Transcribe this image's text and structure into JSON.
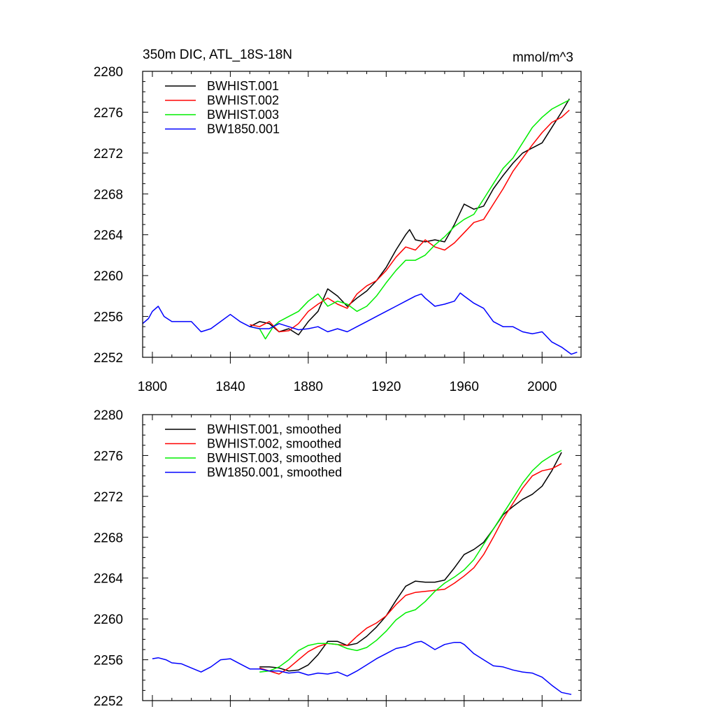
{
  "chart_data": [
    {
      "type": "line",
      "title": "350m DIC, ATL_18S-18N",
      "units": "mmol/m^3",
      "xlim": [
        1795,
        2020
      ],
      "ylim": [
        2252,
        2280
      ],
      "x_ticks": [
        "1800",
        "1840",
        "1880",
        "1920",
        "1960",
        "2000"
      ],
      "y_ticks": [
        "2252",
        "2256",
        "2260",
        "2264",
        "2268",
        "2272",
        "2276",
        "2280"
      ],
      "grid": false,
      "legend_position": "top-left",
      "series": [
        {
          "name": "BWHIST.001",
          "color": "#000000",
          "x": [
            1850,
            1855,
            1860,
            1865,
            1870,
            1875,
            1880,
            1885,
            1890,
            1895,
            1900,
            1905,
            1910,
            1915,
            1920,
            1925,
            1930,
            1932,
            1935,
            1940,
            1945,
            1950,
            1955,
            1960,
            1965,
            1970,
            1975,
            1980,
            1985,
            1990,
            1995,
            2000,
            2005,
            2010,
            2014
          ],
          "y": [
            2255.0,
            2255.5,
            2255.3,
            2254.5,
            2254.8,
            2254.2,
            2255.5,
            2256.5,
            2258.7,
            2258.0,
            2257.0,
            2257.8,
            2258.5,
            2259.5,
            2260.8,
            2262.5,
            2264.0,
            2264.5,
            2263.5,
            2263.3,
            2263.5,
            2263.3,
            2265.0,
            2267.0,
            2266.5,
            2266.8,
            2268.5,
            2269.8,
            2271.0,
            2272.0,
            2272.5,
            2273.0,
            2274.5,
            2276.0,
            2277.3
          ]
        },
        {
          "name": "BWHIST.002",
          "color": "#ff0000",
          "x": [
            1850,
            1855,
            1860,
            1865,
            1870,
            1875,
            1880,
            1885,
            1890,
            1895,
            1900,
            1905,
            1910,
            1915,
            1920,
            1925,
            1930,
            1935,
            1940,
            1945,
            1950,
            1955,
            1960,
            1965,
            1970,
            1975,
            1980,
            1985,
            1990,
            1995,
            2000,
            2005,
            2010,
            2014
          ],
          "y": [
            2255.2,
            2255.0,
            2255.5,
            2254.5,
            2254.6,
            2255.3,
            2256.5,
            2257.2,
            2257.8,
            2257.2,
            2256.8,
            2258.2,
            2259.0,
            2259.5,
            2260.5,
            2261.8,
            2262.8,
            2262.5,
            2263.5,
            2262.8,
            2262.5,
            2263.2,
            2264.2,
            2265.2,
            2265.5,
            2267.0,
            2268.5,
            2270.2,
            2271.5,
            2272.8,
            2274.0,
            2275.0,
            2275.5,
            2276.2
          ]
        },
        {
          "name": "BWHIST.003",
          "color": "#00ee00",
          "x": [
            1850,
            1855,
            1858,
            1862,
            1865,
            1870,
            1875,
            1880,
            1885,
            1890,
            1895,
            1900,
            1905,
            1910,
            1915,
            1920,
            1925,
            1930,
            1935,
            1940,
            1945,
            1950,
            1955,
            1960,
            1965,
            1970,
            1975,
            1980,
            1985,
            1990,
            1995,
            2000,
            2005,
            2010,
            2014
          ],
          "y": [
            2255.0,
            2254.8,
            2253.8,
            2255.0,
            2255.5,
            2256.0,
            2256.5,
            2257.5,
            2258.2,
            2257.0,
            2257.5,
            2257.2,
            2256.5,
            2257.0,
            2258.0,
            2259.3,
            2260.5,
            2261.5,
            2261.5,
            2262.0,
            2263.0,
            2263.8,
            2264.8,
            2265.5,
            2266.0,
            2267.5,
            2269.0,
            2270.5,
            2271.5,
            2273.0,
            2274.5,
            2275.5,
            2276.3,
            2276.8,
            2277.2
          ]
        },
        {
          "name": "BW1850.001",
          "color": "#0000ff",
          "x": [
            1795,
            1798,
            1800,
            1803,
            1806,
            1810,
            1815,
            1820,
            1825,
            1830,
            1835,
            1840,
            1845,
            1850,
            1855,
            1860,
            1865,
            1870,
            1875,
            1880,
            1885,
            1890,
            1895,
            1900,
            1905,
            1910,
            1915,
            1920,
            1925,
            1930,
            1935,
            1938,
            1940,
            1945,
            1950,
            1955,
            1958,
            1960,
            1965,
            1970,
            1975,
            1980,
            1985,
            1990,
            1995,
            2000,
            2005,
            2010,
            2015,
            2018
          ],
          "y": [
            2255.3,
            2255.8,
            2256.5,
            2257.0,
            2256.0,
            2255.5,
            2255.5,
            2255.5,
            2254.5,
            2254.8,
            2255.5,
            2256.2,
            2255.5,
            2255.0,
            2254.8,
            2254.8,
            2255.3,
            2255.0,
            2254.7,
            2254.8,
            2255.0,
            2254.5,
            2254.8,
            2254.5,
            2255.0,
            2255.5,
            2256.0,
            2256.5,
            2257.0,
            2257.5,
            2258.0,
            2258.2,
            2257.8,
            2257.0,
            2257.2,
            2257.5,
            2258.3,
            2258.0,
            2257.3,
            2256.8,
            2255.5,
            2255.0,
            2255.0,
            2254.5,
            2254.3,
            2254.5,
            2253.5,
            2253.0,
            2252.3,
            2252.5
          ]
        }
      ]
    },
    {
      "type": "line",
      "xlim": [
        1795,
        2020
      ],
      "ylim": [
        2252,
        2280
      ],
      "y_ticks": [
        "2252",
        "2256",
        "2260",
        "2264",
        "2268",
        "2272",
        "2276",
        "2280"
      ],
      "grid": false,
      "legend_position": "top-left",
      "series": [
        {
          "name": "BWHIST.001, smoothed",
          "color": "#000000",
          "x": [
            1855,
            1860,
            1865,
            1870,
            1875,
            1880,
            1885,
            1890,
            1895,
            1900,
            1905,
            1910,
            1915,
            1920,
            1925,
            1930,
            1935,
            1940,
            1945,
            1950,
            1955,
            1960,
            1965,
            1970,
            1975,
            1980,
            1985,
            1990,
            1995,
            2000,
            2005,
            2010
          ],
          "y": [
            2255.3,
            2255.3,
            2255.2,
            2254.9,
            2255.0,
            2255.5,
            2256.5,
            2257.8,
            2257.8,
            2257.4,
            2257.6,
            2258.3,
            2259.2,
            2260.3,
            2261.8,
            2263.2,
            2263.7,
            2263.6,
            2263.6,
            2263.8,
            2265.0,
            2266.3,
            2266.8,
            2267.5,
            2268.8,
            2270.2,
            2271.0,
            2271.7,
            2272.2,
            2273.0,
            2274.5,
            2276.3
          ]
        },
        {
          "name": "BWHIST.002, smoothed",
          "color": "#ff0000",
          "x": [
            1855,
            1860,
            1865,
            1870,
            1875,
            1880,
            1885,
            1890,
            1895,
            1900,
            1905,
            1910,
            1915,
            1920,
            1925,
            1930,
            1935,
            1940,
            1945,
            1950,
            1955,
            1960,
            1965,
            1970,
            1975,
            1980,
            1985,
            1990,
            1995,
            2000,
            2005,
            2010
          ],
          "y": [
            2255.2,
            2254.9,
            2254.6,
            2255.2,
            2256.0,
            2256.8,
            2257.3,
            2257.6,
            2257.5,
            2257.4,
            2258.3,
            2259.1,
            2259.6,
            2260.3,
            2261.4,
            2262.3,
            2262.6,
            2262.7,
            2262.8,
            2262.9,
            2263.5,
            2264.2,
            2265.0,
            2266.3,
            2268.0,
            2269.8,
            2271.3,
            2272.8,
            2274.0,
            2274.5,
            2274.7,
            2275.2
          ]
        },
        {
          "name": "BWHIST.003, smoothed",
          "color": "#00ee00",
          "x": [
            1855,
            1860,
            1865,
            1870,
            1875,
            1880,
            1885,
            1890,
            1895,
            1900,
            1905,
            1910,
            1915,
            1920,
            1925,
            1930,
            1935,
            1940,
            1945,
            1950,
            1955,
            1960,
            1965,
            1970,
            1975,
            1980,
            1985,
            1990,
            1995,
            2000,
            2005,
            2010
          ],
          "y": [
            2254.8,
            2254.9,
            2255.3,
            2256.0,
            2256.9,
            2257.4,
            2257.6,
            2257.6,
            2257.5,
            2257.1,
            2256.9,
            2257.2,
            2257.9,
            2258.8,
            2259.9,
            2260.6,
            2260.9,
            2261.7,
            2262.7,
            2263.5,
            2264.1,
            2264.8,
            2265.8,
            2267.3,
            2268.8,
            2270.3,
            2271.8,
            2273.3,
            2274.5,
            2275.4,
            2276.0,
            2276.5
          ]
        },
        {
          "name": "BW1850.001, smoothed",
          "color": "#0000ff",
          "x": [
            1800,
            1803,
            1807,
            1810,
            1815,
            1820,
            1825,
            1830,
            1835,
            1840,
            1845,
            1850,
            1855,
            1860,
            1865,
            1870,
            1875,
            1880,
            1885,
            1890,
            1895,
            1900,
            1905,
            1910,
            1915,
            1920,
            1925,
            1930,
            1935,
            1938,
            1940,
            1945,
            1950,
            1955,
            1958,
            1960,
            1965,
            1970,
            1975,
            1980,
            1985,
            1990,
            1995,
            2000,
            2005,
            2010,
            2015
          ],
          "y": [
            2256.1,
            2256.2,
            2256.0,
            2255.7,
            2255.6,
            2255.2,
            2254.8,
            2255.3,
            2256.0,
            2256.1,
            2255.6,
            2255.1,
            2255.1,
            2254.9,
            2254.9,
            2254.7,
            2254.8,
            2254.5,
            2254.7,
            2254.6,
            2254.8,
            2254.4,
            2254.9,
            2255.5,
            2256.1,
            2256.6,
            2257.1,
            2257.3,
            2257.7,
            2257.8,
            2257.6,
            2257.0,
            2257.5,
            2257.7,
            2257.7,
            2257.5,
            2256.6,
            2256.0,
            2255.4,
            2255.3,
            2255.0,
            2254.8,
            2254.7,
            2254.3,
            2253.5,
            2252.8,
            2252.6
          ]
        }
      ]
    }
  ]
}
